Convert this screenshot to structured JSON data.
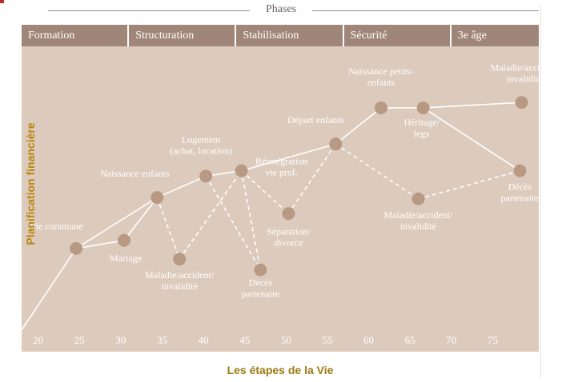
{
  "header": {
    "title": "Phases"
  },
  "phases": [
    {
      "label": "Formation",
      "start": 18,
      "end": 31
    },
    {
      "label": "Structuration",
      "start": 31,
      "end": 44
    },
    {
      "label": "Stabilisation",
      "start": 44,
      "end": 57
    },
    {
      "label": "Sécurité",
      "start": 57,
      "end": 70
    },
    {
      "label": "3e âge",
      "start": 70,
      "end": 80
    }
  ],
  "axes": {
    "xlabel": "Les étapes de la Vie",
    "ylabel": "Planification financière"
  },
  "chart_data": {
    "type": "line",
    "x_ticks": [
      20,
      25,
      30,
      35,
      40,
      45,
      50,
      55,
      60,
      65,
      70,
      75
    ],
    "xlim": [
      18,
      80
    ],
    "ylim": [
      0,
      100
    ],
    "colors": {
      "line": "#ffffff",
      "dot": "#b89a84",
      "text": "#ffffff",
      "plot_bg": "#dccabd",
      "phase_bg": "#a08678"
    },
    "nodes": [
      {
        "id": "start",
        "x": 18,
        "y": 0,
        "label": ""
      },
      {
        "id": "vie-commune",
        "x": 24.6,
        "y": 30.5,
        "label": "Vie commune"
      },
      {
        "id": "mariage",
        "x": 30.4,
        "y": 33.5,
        "label": "Mariage"
      },
      {
        "id": "naissance-enfants",
        "x": 34.4,
        "y": 49.5,
        "label": "Naissance enfants"
      },
      {
        "id": "maladie-1",
        "x": 37.1,
        "y": 26.5,
        "label": "Maladie/accident/\ninvalidité"
      },
      {
        "id": "logement",
        "x": 40.3,
        "y": 57.5,
        "label": "Logement\n(achat, location)"
      },
      {
        "id": "reintegration",
        "x": 44.6,
        "y": 59.5,
        "label": "Réintégration\nvie prof."
      },
      {
        "id": "deces-1",
        "x": 46.9,
        "y": 22.5,
        "label": "Décès\npartenaire"
      },
      {
        "id": "separation",
        "x": 50.3,
        "y": 43.5,
        "label": "Séparation/\ndivorce"
      },
      {
        "id": "depart-enfants",
        "x": 56.0,
        "y": 69.5,
        "label": "Départ enfants"
      },
      {
        "id": "naissance-petits",
        "x": 61.5,
        "y": 83.0,
        "label": "Naissance petits-\nenfants"
      },
      {
        "id": "heritage",
        "x": 66.6,
        "y": 83.0,
        "label": "Héritage/\nlegs"
      },
      {
        "id": "maladie-2",
        "x": 78.5,
        "y": 85.0,
        "label": "Maladie/accident/\ninvalidité"
      },
      {
        "id": "maladie-3",
        "x": 66.0,
        "y": 49.0,
        "label": "Maladie/accident/\ninvalidité"
      },
      {
        "id": "deces-2",
        "x": 78.3,
        "y": 59.5,
        "label": "Décès\npartenaire"
      }
    ],
    "solid_edges": [
      [
        "start",
        "vie-commune"
      ],
      [
        "vie-commune",
        "mariage"
      ],
      [
        "mariage",
        "naissance-enfants"
      ],
      [
        "vie-commune",
        "naissance-enfants"
      ],
      [
        "naissance-enfants",
        "logement"
      ],
      [
        "logement",
        "reintegration"
      ],
      [
        "reintegration",
        "depart-enfants"
      ],
      [
        "depart-enfants",
        "naissance-petits"
      ],
      [
        "naissance-petits",
        "heritage"
      ],
      [
        "heritage",
        "maladie-2"
      ],
      [
        "heritage",
        "deces-2"
      ]
    ],
    "dashed_edges": [
      [
        "naissance-enfants",
        "maladie-1"
      ],
      [
        "maladie-1",
        "reintegration"
      ],
      [
        "logement",
        "deces-1"
      ],
      [
        "reintegration",
        "deces-1"
      ],
      [
        "reintegration",
        "separation"
      ],
      [
        "separation",
        "depart-enfants"
      ],
      [
        "depart-enfants",
        "maladie-3"
      ],
      [
        "maladie-3",
        "deces-2"
      ]
    ]
  }
}
